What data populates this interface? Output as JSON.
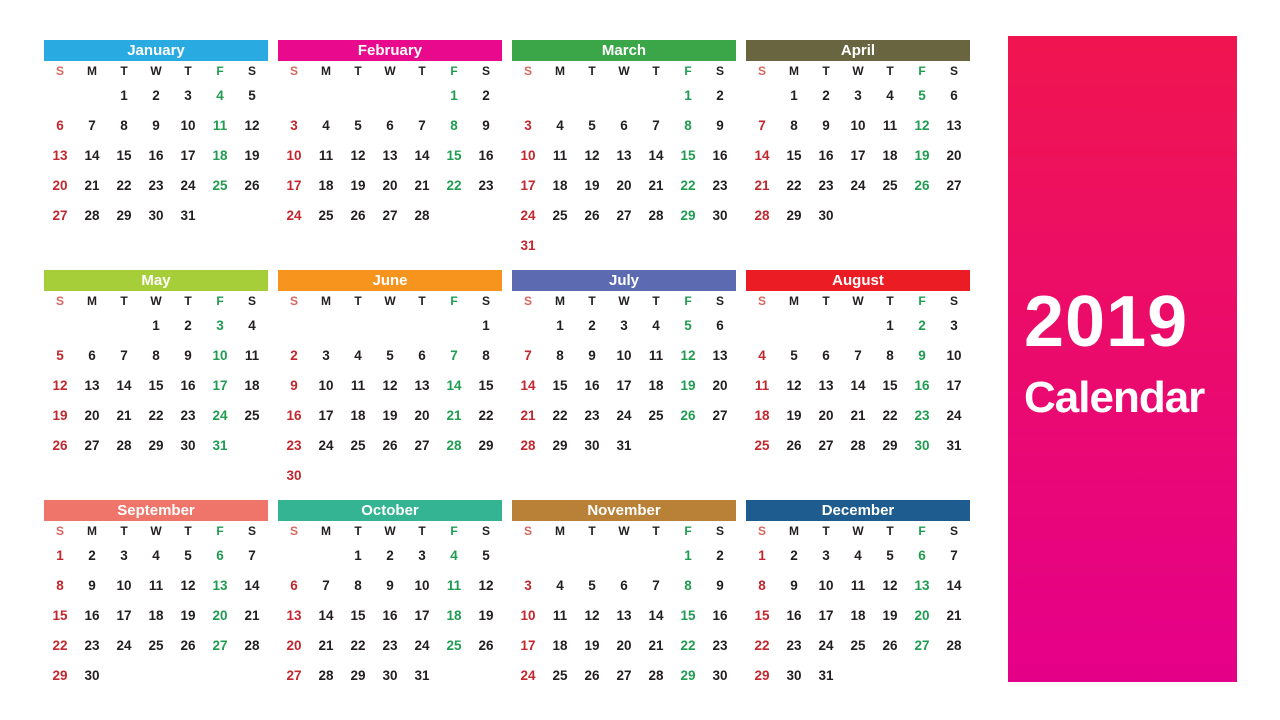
{
  "panel": {
    "year": "2019",
    "word": "Calendar",
    "gradient_top": "#F01550",
    "gradient_bottom": "#E50089"
  },
  "colors": {
    "sunday_text": "#C1272D",
    "friday_text": "#1F9C50",
    "weekday_text": "#231F20",
    "header_sunday_text": "#D4685F",
    "month_title_text": "#FFFFFF"
  },
  "day_headers": [
    "S",
    "M",
    "T",
    "W",
    "T",
    "F",
    "S"
  ],
  "months": [
    {
      "name": "January",
      "color": "#29ABE2",
      "weeks": [
        [
          "",
          "",
          "1",
          "2",
          "3",
          "4",
          "5"
        ],
        [
          "6",
          "7",
          "8",
          "9",
          "10",
          "11",
          "12"
        ],
        [
          "13",
          "14",
          "15",
          "16",
          "17",
          "18",
          "19"
        ],
        [
          "20",
          "21",
          "22",
          "23",
          "24",
          "25",
          "26"
        ],
        [
          "27",
          "28",
          "29",
          "30",
          "31",
          "",
          ""
        ]
      ]
    },
    {
      "name": "February",
      "color": "#E9098D",
      "weeks": [
        [
          "",
          "",
          "",
          "",
          "",
          "1",
          "2"
        ],
        [
          "3",
          "4",
          "5",
          "6",
          "7",
          "8",
          "9"
        ],
        [
          "10",
          "11",
          "12",
          "13",
          "14",
          "15",
          "16"
        ],
        [
          "17",
          "18",
          "19",
          "20",
          "21",
          "22",
          "23"
        ],
        [
          "24",
          "25",
          "26",
          "27",
          "28",
          "",
          ""
        ]
      ]
    },
    {
      "name": "March",
      "color": "#3AA648",
      "weeks": [
        [
          "",
          "",
          "",
          "",
          "",
          "1",
          "2"
        ],
        [
          "3",
          "4",
          "5",
          "6",
          "7",
          "8",
          "9"
        ],
        [
          "10",
          "11",
          "12",
          "13",
          "14",
          "15",
          "16"
        ],
        [
          "17",
          "18",
          "19",
          "20",
          "21",
          "22",
          "23"
        ],
        [
          "24",
          "25",
          "26",
          "27",
          "28",
          "29",
          "30"
        ],
        [
          "31",
          "",
          "",
          "",
          "",
          "",
          ""
        ]
      ]
    },
    {
      "name": "April",
      "color": "#696540",
      "weeks": [
        [
          "",
          "1",
          "2",
          "3",
          "4",
          "5",
          "6"
        ],
        [
          "7",
          "8",
          "9",
          "10",
          "11",
          "12",
          "13"
        ],
        [
          "14",
          "15",
          "16",
          "17",
          "18",
          "19",
          "20"
        ],
        [
          "21",
          "22",
          "23",
          "24",
          "25",
          "26",
          "27"
        ],
        [
          "28",
          "29",
          "30",
          "",
          "",
          "",
          ""
        ]
      ]
    },
    {
      "name": "May",
      "color": "#A6CE39",
      "weeks": [
        [
          "",
          "",
          "",
          "1",
          "2",
          "3",
          "4"
        ],
        [
          "5",
          "6",
          "7",
          "8",
          "9",
          "10",
          "11"
        ],
        [
          "12",
          "13",
          "14",
          "15",
          "16",
          "17",
          "18"
        ],
        [
          "19",
          "20",
          "21",
          "22",
          "23",
          "24",
          "25"
        ],
        [
          "26",
          "27",
          "28",
          "29",
          "30",
          "31",
          ""
        ]
      ]
    },
    {
      "name": "June",
      "color": "#F7941E",
      "weeks": [
        [
          "",
          "",
          "",
          "",
          "",
          "",
          "1"
        ],
        [
          "2",
          "3",
          "4",
          "5",
          "6",
          "7",
          "8"
        ],
        [
          "9",
          "10",
          "11",
          "12",
          "13",
          "14",
          "15"
        ],
        [
          "16",
          "17",
          "18",
          "19",
          "20",
          "21",
          "22"
        ],
        [
          "23",
          "24",
          "25",
          "26",
          "27",
          "28",
          "29"
        ],
        [
          "30",
          "",
          "",
          "",
          "",
          "",
          ""
        ]
      ]
    },
    {
      "name": "July",
      "color": "#5C6BB1",
      "weeks": [
        [
          "",
          "1",
          "2",
          "3",
          "4",
          "5",
          "6"
        ],
        [
          "7",
          "8",
          "9",
          "10",
          "11",
          "12",
          "13"
        ],
        [
          "14",
          "15",
          "16",
          "17",
          "18",
          "19",
          "20"
        ],
        [
          "21",
          "22",
          "23",
          "24",
          "25",
          "26",
          "27"
        ],
        [
          "28",
          "29",
          "30",
          "31",
          "",
          "",
          ""
        ]
      ]
    },
    {
      "name": "August",
      "color": "#EC1C24",
      "weeks": [
        [
          "",
          "",
          "",
          "",
          "1",
          "2",
          "3"
        ],
        [
          "4",
          "5",
          "6",
          "7",
          "8",
          "9",
          "10"
        ],
        [
          "11",
          "12",
          "13",
          "14",
          "15",
          "16",
          "17"
        ],
        [
          "18",
          "19",
          "20",
          "21",
          "22",
          "23",
          "24"
        ],
        [
          "25",
          "26",
          "27",
          "28",
          "29",
          "30",
          "31"
        ]
      ]
    },
    {
      "name": "September",
      "color": "#EF756B",
      "weeks": [
        [
          "1",
          "2",
          "3",
          "4",
          "5",
          "6",
          "7"
        ],
        [
          "8",
          "9",
          "10",
          "11",
          "12",
          "13",
          "14"
        ],
        [
          "15",
          "16",
          "17",
          "18",
          "19",
          "20",
          "21"
        ],
        [
          "22",
          "23",
          "24",
          "25",
          "26",
          "27",
          "28"
        ],
        [
          "29",
          "30",
          "",
          "",
          "",
          "",
          ""
        ]
      ]
    },
    {
      "name": "October",
      "color": "#35B493",
      "weeks": [
        [
          "",
          "",
          "1",
          "2",
          "3",
          "4",
          "5"
        ],
        [
          "6",
          "7",
          "8",
          "9",
          "10",
          "11",
          "12"
        ],
        [
          "13",
          "14",
          "15",
          "16",
          "17",
          "18",
          "19"
        ],
        [
          "20",
          "21",
          "22",
          "23",
          "24",
          "25",
          "26"
        ],
        [
          "27",
          "28",
          "29",
          "30",
          "31",
          "",
          ""
        ]
      ]
    },
    {
      "name": "November",
      "color": "#B98138",
      "weeks": [
        [
          "",
          "",
          "",
          "",
          "",
          "1",
          "2"
        ],
        [
          "3",
          "4",
          "5",
          "6",
          "7",
          "8",
          "9"
        ],
        [
          "10",
          "11",
          "12",
          "13",
          "14",
          "15",
          "16"
        ],
        [
          "17",
          "18",
          "19",
          "20",
          "21",
          "22",
          "23"
        ],
        [
          "24",
          "25",
          "26",
          "27",
          "28",
          "29",
          "30"
        ]
      ]
    },
    {
      "name": "December",
      "color": "#1E5C8F",
      "weeks": [
        [
          "1",
          "2",
          "3",
          "4",
          "5",
          "6",
          "7"
        ],
        [
          "8",
          "9",
          "10",
          "11",
          "12",
          "13",
          "14"
        ],
        [
          "15",
          "16",
          "17",
          "18",
          "19",
          "20",
          "21"
        ],
        [
          "22",
          "23",
          "24",
          "25",
          "26",
          "27",
          "28"
        ],
        [
          "29",
          "30",
          "31",
          "",
          "",
          "",
          ""
        ]
      ]
    }
  ]
}
